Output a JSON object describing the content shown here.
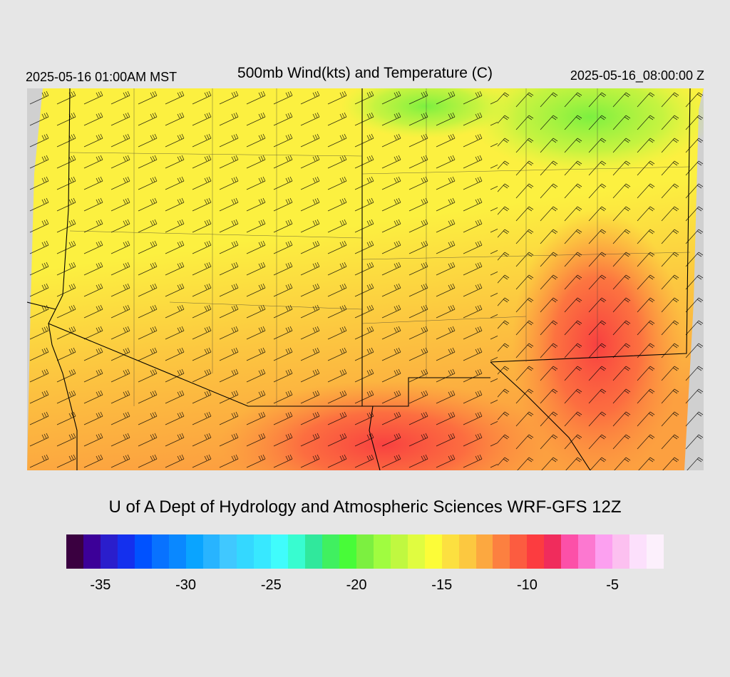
{
  "header": {
    "valid_local": "2025-05-16 01:00AM MST",
    "title": "500mb Wind(kts) and Temperature (C)",
    "valid_utc": "2025-05-16_08:00:00 Z"
  },
  "credit": "U of A Dept of Hydrology and Atmospheric Sciences WRF-GFS 12Z",
  "colorbar": {
    "colors": [
      "#3a0040",
      "#3c0098",
      "#2a1ecc",
      "#1430ee",
      "#0052ff",
      "#0872ff",
      "#0a88ff",
      "#0aa4ff",
      "#28b4ff",
      "#40c8ff",
      "#34d8ff",
      "#38e8ff",
      "#40fcfc",
      "#38fcd0",
      "#30e89c",
      "#40f060",
      "#48fc38",
      "#7cf040",
      "#a0fc40",
      "#c0f840",
      "#e0fc40",
      "#fcfc38",
      "#fce040",
      "#fcc840",
      "#fca840",
      "#fc8040",
      "#fc5c40",
      "#fc3c40",
      "#f02c5c",
      "#fc50a8",
      "#fc78d0",
      "#fca0f0",
      "#fcc0f0",
      "#fce0fc",
      "#fcf0fc"
    ],
    "tick_labels": [
      "-35",
      "-30",
      "-25",
      "-20",
      "-15",
      "-10",
      "-5"
    ],
    "tick_values": [
      -35,
      -30,
      -25,
      -20,
      -15,
      -10,
      -5
    ],
    "min": -37,
    "max": -2
  },
  "map": {
    "layers": "temperature shading, wind barbs, terrain contours, state and county boundaries"
  }
}
